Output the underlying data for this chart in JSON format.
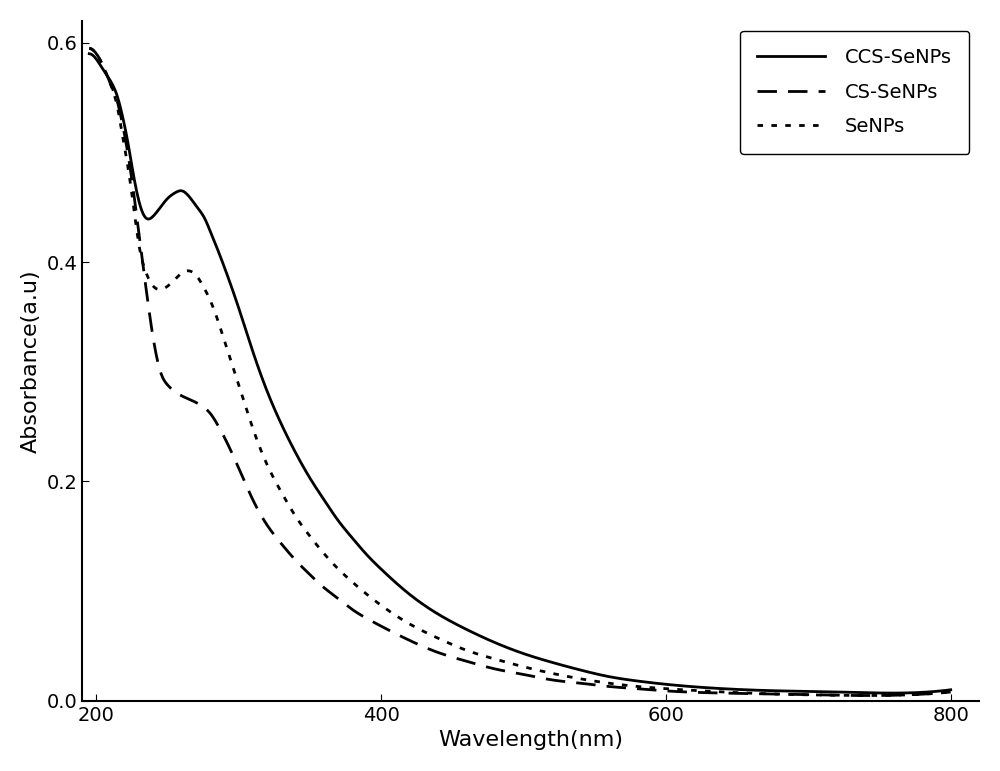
{
  "title": "",
  "xlabel": "Wavelength(nm)",
  "ylabel": "Absorbance(a.u)",
  "xlim": [
    190,
    820
  ],
  "ylim": [
    0.0,
    0.62
  ],
  "xticks": [
    200,
    400,
    600,
    800
  ],
  "yticks": [
    0.0,
    0.2,
    0.4,
    0.6
  ],
  "legend_labels": [
    "CCS-SeNPs",
    "CS-SeNPs",
    "SeNPs"
  ],
  "line_styles": [
    "-",
    "--",
    ":"
  ],
  "line_color": "#000000",
  "line_width": 2.0,
  "legend_fontsize": 14,
  "axis_fontsize": 16,
  "tick_fontsize": 14,
  "bg_color": "#ffffff",
  "ccs_senps_x": [
    195,
    200,
    205,
    210,
    215,
    218,
    222,
    226,
    230,
    235,
    240,
    245,
    250,
    255,
    260,
    265,
    268,
    272,
    276,
    280,
    285,
    290,
    300,
    310,
    320,
    330,
    340,
    350,
    360,
    370,
    380,
    390,
    400,
    420,
    440,
    460,
    480,
    500,
    520,
    540,
    560,
    580,
    600,
    640,
    680,
    720,
    760,
    800
  ],
  "ccs_senps_y": [
    0.59,
    0.585,
    0.575,
    0.565,
    0.55,
    0.535,
    0.51,
    0.48,
    0.455,
    0.44,
    0.442,
    0.45,
    0.458,
    0.463,
    0.465,
    0.46,
    0.455,
    0.448,
    0.44,
    0.428,
    0.412,
    0.395,
    0.358,
    0.318,
    0.282,
    0.252,
    0.226,
    0.203,
    0.183,
    0.164,
    0.148,
    0.133,
    0.12,
    0.097,
    0.079,
    0.065,
    0.053,
    0.043,
    0.035,
    0.028,
    0.022,
    0.018,
    0.015,
    0.011,
    0.009,
    0.008,
    0.007,
    0.01
  ],
  "cs_senps_x": [
    195,
    200,
    205,
    210,
    215,
    218,
    222,
    226,
    230,
    235,
    240,
    245,
    250,
    255,
    260,
    265,
    270,
    275,
    280,
    285,
    290,
    300,
    310,
    320,
    330,
    340,
    350,
    360,
    370,
    380,
    390,
    400,
    420,
    440,
    460,
    480,
    500,
    520,
    540,
    560,
    580,
    600,
    640,
    680,
    720,
    760,
    800
  ],
  "cs_senps_y": [
    0.595,
    0.59,
    0.578,
    0.562,
    0.545,
    0.528,
    0.5,
    0.465,
    0.425,
    0.375,
    0.33,
    0.3,
    0.288,
    0.282,
    0.278,
    0.275,
    0.272,
    0.268,
    0.262,
    0.252,
    0.24,
    0.212,
    0.183,
    0.16,
    0.143,
    0.128,
    0.115,
    0.103,
    0.093,
    0.083,
    0.075,
    0.068,
    0.055,
    0.044,
    0.036,
    0.029,
    0.024,
    0.019,
    0.016,
    0.013,
    0.011,
    0.009,
    0.007,
    0.006,
    0.005,
    0.005,
    0.008
  ],
  "senps_x": [
    195,
    200,
    205,
    210,
    215,
    218,
    222,
    226,
    230,
    235,
    240,
    245,
    250,
    255,
    260,
    265,
    270,
    275,
    280,
    285,
    290,
    300,
    310,
    320,
    330,
    340,
    350,
    360,
    370,
    380,
    390,
    400,
    420,
    440,
    460,
    480,
    500,
    520,
    540,
    560,
    580,
    600,
    640,
    680,
    720,
    760,
    800
  ],
  "senps_y": [
    0.595,
    0.59,
    0.578,
    0.562,
    0.54,
    0.518,
    0.488,
    0.452,
    0.415,
    0.39,
    0.378,
    0.375,
    0.378,
    0.384,
    0.39,
    0.392,
    0.388,
    0.378,
    0.365,
    0.348,
    0.328,
    0.288,
    0.248,
    0.215,
    0.19,
    0.168,
    0.15,
    0.134,
    0.12,
    0.108,
    0.097,
    0.087,
    0.07,
    0.057,
    0.046,
    0.038,
    0.031,
    0.025,
    0.02,
    0.016,
    0.013,
    0.011,
    0.008,
    0.006,
    0.005,
    0.005,
    0.008
  ]
}
